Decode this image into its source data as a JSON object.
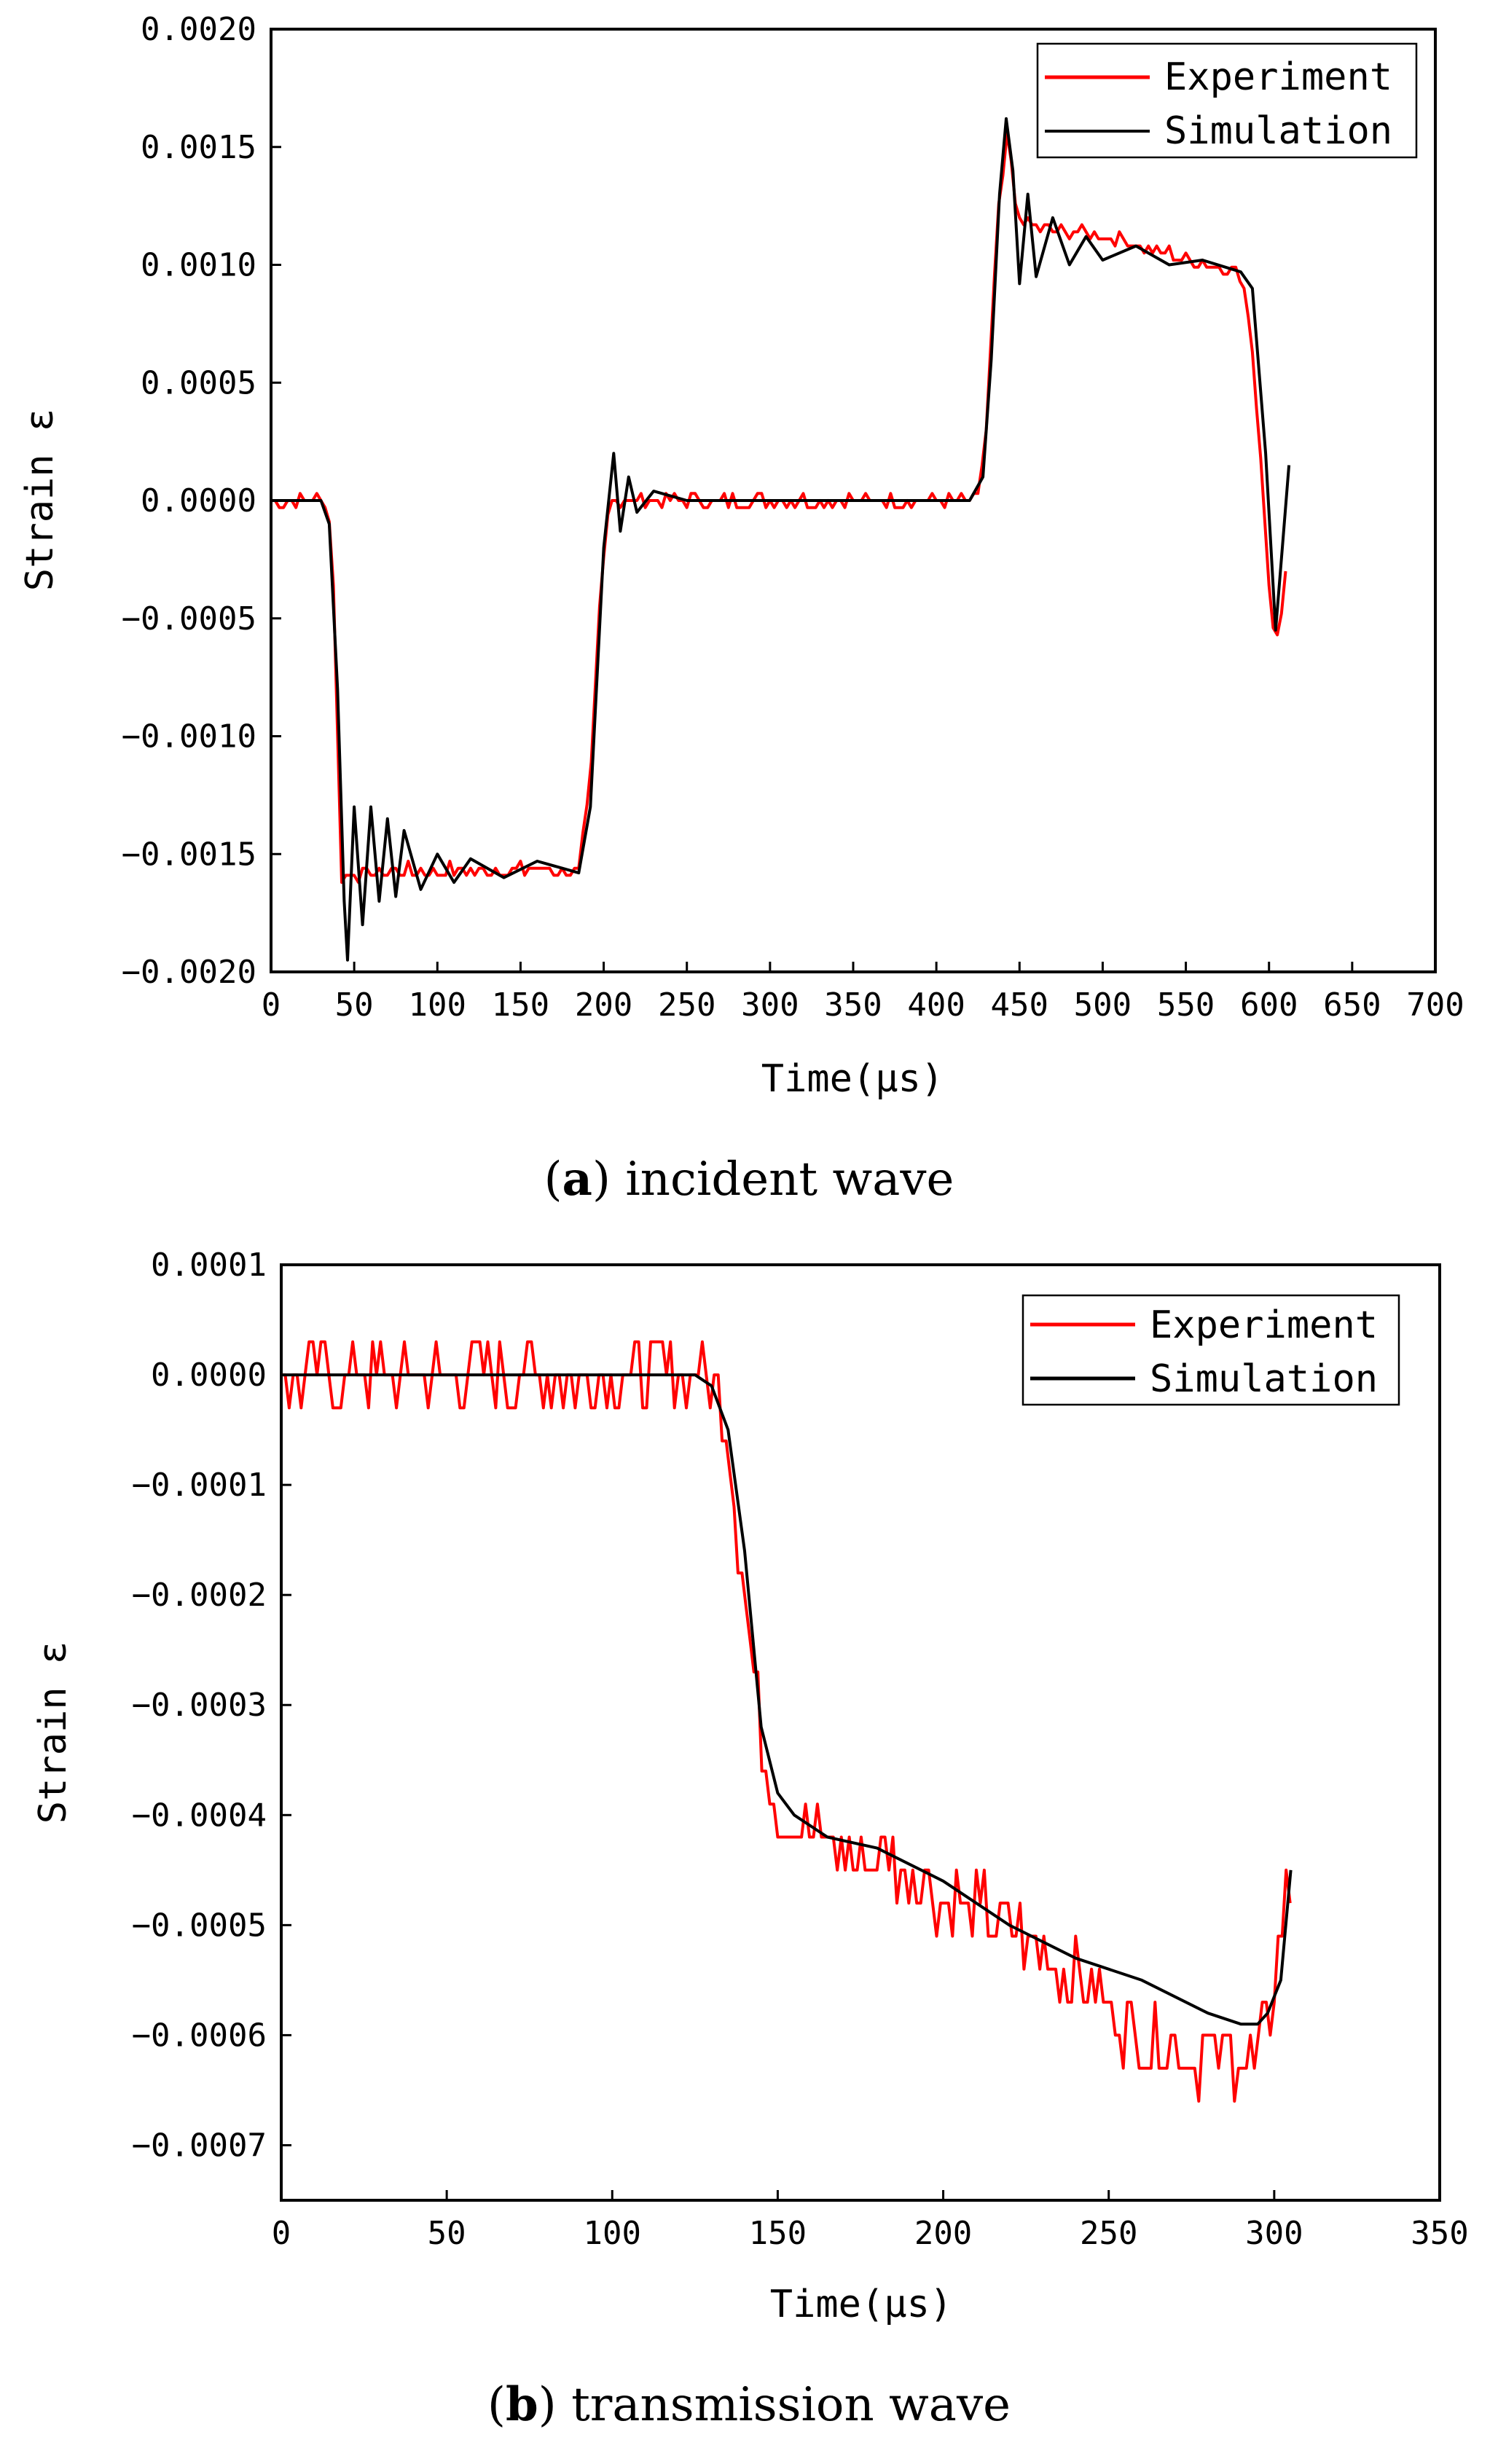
{
  "chart_data": [
    {
      "type": "line",
      "caption": {
        "letter": "a",
        "text": "incident wave"
      },
      "xlabel": "Time(μs)",
      "ylabel": "Strain ε",
      "xlim": [
        0,
        700
      ],
      "ylim": [
        -0.002,
        0.002
      ],
      "xticks": [
        "0",
        "50",
        "100",
        "150",
        "200",
        "250",
        "300",
        "350",
        "400",
        "450",
        "500",
        "550",
        "600",
        "650",
        "700"
      ],
      "yticks": [
        "0.0020",
        "0.0015",
        "0.0010",
        "0.0005",
        "0.0000",
        "−0.0005",
        "−0.0010",
        "−0.0015",
        "−0.0020"
      ],
      "legend": {
        "position": "top-right",
        "entries": [
          "Experiment",
          "Simulation"
        ]
      },
      "series": [
        {
          "name": "Experiment",
          "color": "#ff0000",
          "noisy": true,
          "points": [
            [
              0,
              0
            ],
            [
              34,
              0
            ],
            [
              38,
              -0.0004
            ],
            [
              42,
              -0.0016
            ],
            [
              45,
              -0.00158
            ],
            [
              100,
              -0.00157
            ],
            [
              150,
              -0.00157
            ],
            [
              185,
              -0.00157
            ],
            [
              192,
              -0.0012
            ],
            [
              198,
              -0.0004
            ],
            [
              203,
              0
            ],
            [
              260,
              0
            ],
            [
              320,
              0
            ],
            [
              380,
              0
            ],
            [
              425,
              0
            ],
            [
              430,
              0.0003
            ],
            [
              437,
              0.0012
            ],
            [
              443,
              0.00157
            ],
            [
              448,
              0.0012
            ],
            [
              460,
              0.00115
            ],
            [
              500,
              0.00112
            ],
            [
              550,
              0.00103
            ],
            [
              580,
              0.00098
            ],
            [
              588,
              0.0008
            ],
            [
              595,
              0.0002
            ],
            [
              602,
              -0.00055
            ],
            [
              605,
              -0.00058
            ],
            [
              610,
              -0.0003
            ]
          ]
        },
        {
          "name": "Simulation",
          "color": "#000000",
          "noisy": false,
          "points": [
            [
              0,
              0
            ],
            [
              30,
              0
            ],
            [
              35,
              -0.0001
            ],
            [
              40,
              -0.0008
            ],
            [
              44,
              -0.0017
            ],
            [
              46,
              -0.00195
            ],
            [
              50,
              -0.0013
            ],
            [
              55,
              -0.0018
            ],
            [
              60,
              -0.0013
            ],
            [
              65,
              -0.0017
            ],
            [
              70,
              -0.00135
            ],
            [
              75,
              -0.00168
            ],
            [
              80,
              -0.0014
            ],
            [
              90,
              -0.00165
            ],
            [
              100,
              -0.0015
            ],
            [
              110,
              -0.00162
            ],
            [
              120,
              -0.00152
            ],
            [
              140,
              -0.0016
            ],
            [
              160,
              -0.00153
            ],
            [
              185,
              -0.00158
            ],
            [
              192,
              -0.0013
            ],
            [
              200,
              -0.0002
            ],
            [
              206,
              0.0002
            ],
            [
              210,
              -0.00013
            ],
            [
              215,
              0.0001
            ],
            [
              220,
              -5e-05
            ],
            [
              230,
              4e-05
            ],
            [
              250,
              0
            ],
            [
              300,
              0
            ],
            [
              350,
              0
            ],
            [
              420,
              0
            ],
            [
              428,
              0.0001
            ],
            [
              433,
              0.0006
            ],
            [
              438,
              0.0013
            ],
            [
              442,
              0.00162
            ],
            [
              446,
              0.0014
            ],
            [
              450,
              0.00092
            ],
            [
              455,
              0.0013
            ],
            [
              460,
              0.00095
            ],
            [
              470,
              0.0012
            ],
            [
              480,
              0.001
            ],
            [
              490,
              0.00112
            ],
            [
              500,
              0.00102
            ],
            [
              520,
              0.00108
            ],
            [
              540,
              0.001
            ],
            [
              560,
              0.00102
            ],
            [
              583,
              0.00097
            ],
            [
              590,
              0.0009
            ],
            [
              598,
              0.0002
            ],
            [
              604,
              -0.00055
            ],
            [
              608,
              -0.0002
            ],
            [
              612,
              0.00015
            ]
          ]
        }
      ]
    },
    {
      "type": "line",
      "caption": {
        "letter": "b",
        "text": "transmission wave"
      },
      "xlabel": "Time(μs)",
      "ylabel": "Strain ε",
      "xlim": [
        0,
        350
      ],
      "ylim": [
        -0.00075,
        0.0001
      ],
      "xticks": [
        "0",
        "50",
        "100",
        "150",
        "200",
        "250",
        "300",
        "350"
      ],
      "yticks": [
        "0.0001",
        "0.0000",
        "−0.0001",
        "−0.0002",
        "−0.0003",
        "−0.0004",
        "−0.0005",
        "−0.0006",
        "−0.0007"
      ],
      "legend": {
        "position": "top-right",
        "entries": [
          "Experiment",
          "Simulation"
        ]
      },
      "series": [
        {
          "name": "Experiment",
          "color": "#ff0000",
          "noisy": true,
          "points": [
            [
              0,
              0
            ],
            [
              130,
              0
            ],
            [
              135,
              -5e-05
            ],
            [
              140,
              -0.0002
            ],
            [
              145,
              -0.00033
            ],
            [
              150,
              -0.0004
            ],
            [
              160,
              -0.00042
            ],
            [
              180,
              -0.00044
            ],
            [
              200,
              -0.00047
            ],
            [
              220,
              -0.0005
            ],
            [
              240,
              -0.00055
            ],
            [
              260,
              -0.0006
            ],
            [
              280,
              -0.00062
            ],
            [
              295,
              -0.00062
            ],
            [
              298,
              -0.0006
            ],
            [
              302,
              -0.0005
            ],
            [
              305,
              -0.00046
            ]
          ]
        },
        {
          "name": "Simulation",
          "color": "#000000",
          "noisy": false,
          "points": [
            [
              0,
              0
            ],
            [
              125,
              0
            ],
            [
              130,
              -1e-05
            ],
            [
              135,
              -5e-05
            ],
            [
              140,
              -0.00016
            ],
            [
              145,
              -0.00032
            ],
            [
              150,
              -0.00038
            ],
            [
              155,
              -0.0004
            ],
            [
              165,
              -0.00042
            ],
            [
              180,
              -0.00043
            ],
            [
              200,
              -0.00046
            ],
            [
              220,
              -0.0005
            ],
            [
              240,
              -0.00053
            ],
            [
              260,
              -0.00055
            ],
            [
              280,
              -0.00058
            ],
            [
              290,
              -0.00059
            ],
            [
              295,
              -0.00059
            ],
            [
              298,
              -0.00058
            ],
            [
              302,
              -0.00055
            ],
            [
              305,
              -0.00045
            ]
          ]
        }
      ]
    }
  ]
}
